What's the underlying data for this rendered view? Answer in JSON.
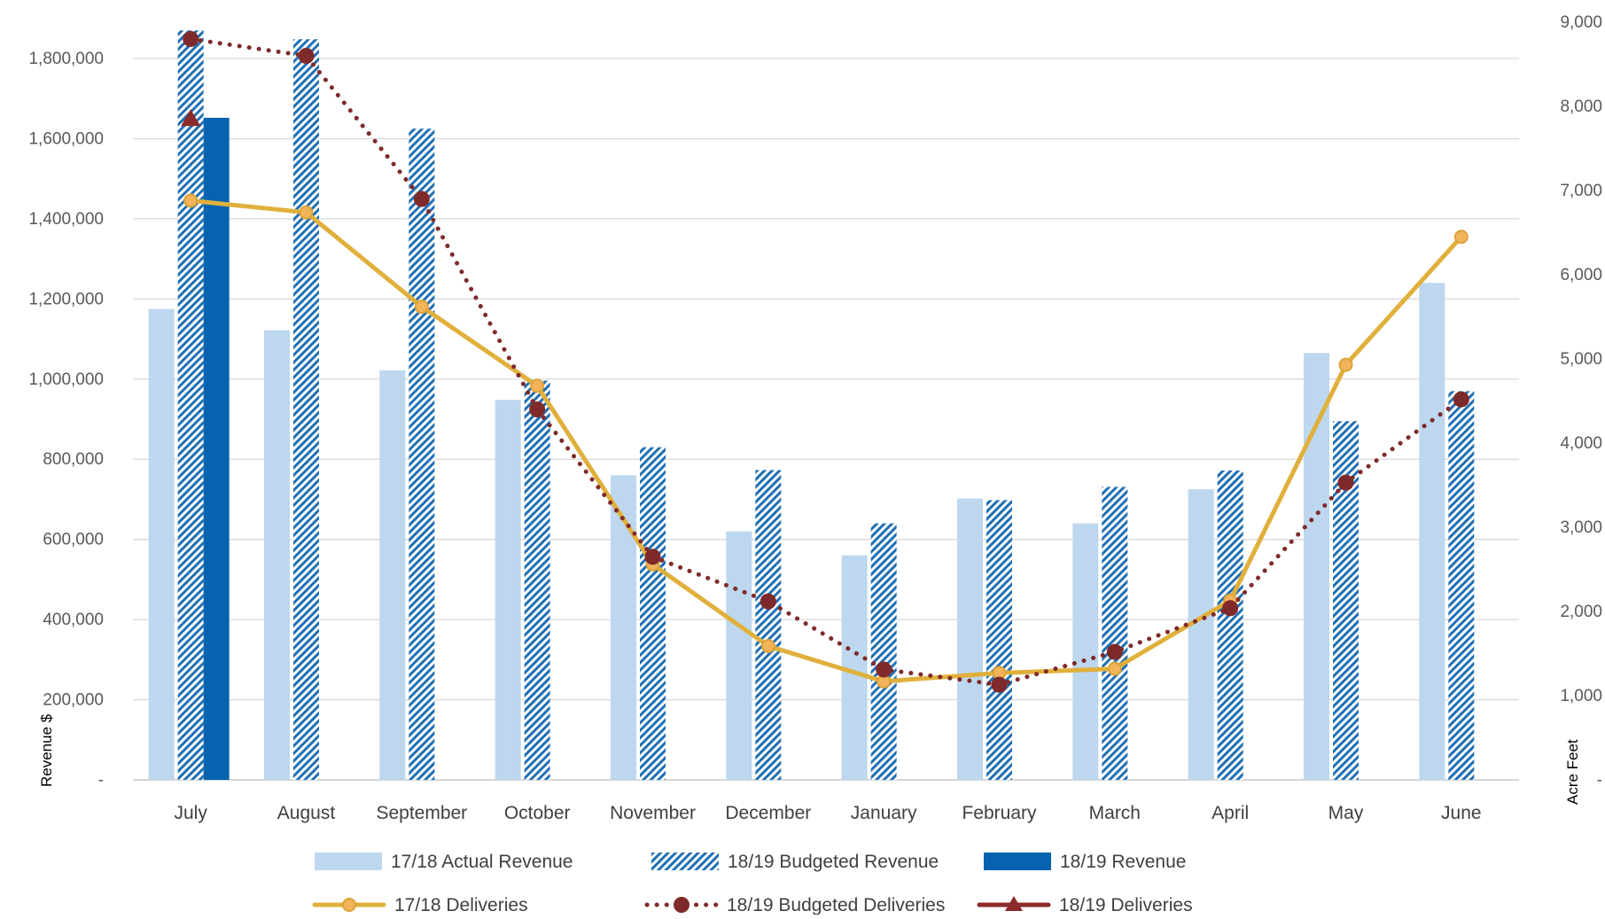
{
  "chart_data": {
    "type": "bar",
    "title": "",
    "categories": [
      "July",
      "August",
      "September",
      "October",
      "November",
      "December",
      "January",
      "February",
      "March",
      "April",
      "May",
      "June"
    ],
    "y_left": {
      "label": "Revenue $",
      "min": 0,
      "max": 1800000,
      "tick_values": [
        0,
        200000,
        400000,
        600000,
        800000,
        1000000,
        1200000,
        1400000,
        1600000,
        1800000
      ],
      "tick_labels": [
        "-",
        "200,000",
        "400,000",
        "600,000",
        "800,000",
        "1,000,000",
        "1,200,000",
        "1,400,000",
        "1,600,000",
        "1,800,000"
      ]
    },
    "y_right": {
      "label": "Acre Feet",
      "min": 0,
      "max": 9000,
      "tick_values": [
        0,
        1000,
        2000,
        3000,
        4000,
        5000,
        6000,
        7000,
        8000,
        9000
      ],
      "tick_labels": [
        "-",
        "1,000",
        "2,000",
        "3,000",
        "4,000",
        "5,000",
        "6,000",
        "7,000",
        "8,000",
        "9,000"
      ]
    },
    "grid": "horizontal",
    "legend_position": "bottom",
    "bar_series": [
      {
        "name": "17/18 Actual Revenue",
        "axis": "left",
        "style": "solid-light",
        "color": "#bdd7ee",
        "values": [
          1175000,
          1122000,
          1022000,
          948000,
          760000,
          620000,
          560000,
          702000,
          640000,
          725000,
          1065000,
          1240000
        ]
      },
      {
        "name": "18/19 Budgeted Revenue",
        "axis": "left",
        "style": "hatched",
        "color": "#1f6fb5",
        "values": [
          1870000,
          1848000,
          1625000,
          996000,
          830000,
          773000,
          640000,
          698000,
          731000,
          772000,
          895000,
          970000
        ]
      },
      {
        "name": "18/19 Revenue",
        "axis": "left",
        "style": "solid-dark",
        "color": "#0563b0",
        "values": [
          1652000,
          null,
          null,
          null,
          null,
          null,
          null,
          null,
          null,
          null,
          null,
          null
        ]
      }
    ],
    "line_series": [
      {
        "name": "17/18 Deliveries",
        "axis": "right",
        "style": "solid",
        "color": "#e0b03c",
        "marker": "circle",
        "values": [
          6880,
          6740,
          5620,
          4680,
          2560,
          1590,
          1170,
          1270,
          1320,
          2130,
          4930,
          6450
        ]
      },
      {
        "name": "18/19 Budgeted Deliveries",
        "axis": "right",
        "style": "dotted",
        "color": "#7f2a2a",
        "marker": "circle",
        "values": [
          8800,
          8600,
          6900,
          4400,
          2650,
          2120,
          1310,
          1130,
          1520,
          2040,
          3530,
          4520
        ]
      },
      {
        "name": "18/19 Deliveries",
        "axis": "right",
        "style": "solid",
        "color": "#8b2a2a",
        "marker": "triangle",
        "values": [
          7850,
          null,
          null,
          null,
          null,
          null,
          null,
          null,
          null,
          null,
          null,
          null
        ]
      }
    ]
  }
}
